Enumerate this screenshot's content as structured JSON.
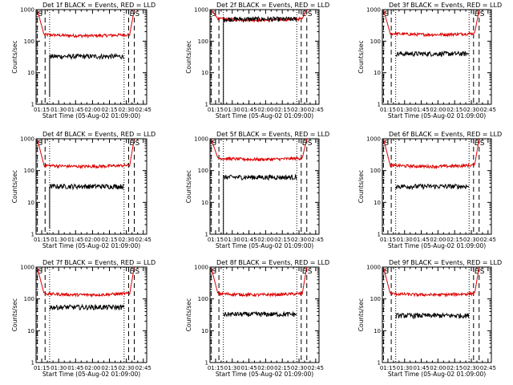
{
  "colors": {
    "events": "#000000",
    "lld": "#dd0000",
    "background": "#ffffff",
    "axes": "#000000"
  },
  "chart_data": [
    {
      "type": "line",
      "title": "Det 1f BLACK = Events, RED = LLD",
      "xlabel": "Start Time (05-Aug-02 01:09:00)",
      "ylabel": "Counts/sec",
      "yscale": "log",
      "ylim": [
        1,
        1000
      ],
      "x_ticks": [
        "01:15",
        "01:30",
        "01:45",
        "02:00",
        "02:15",
        "02:30",
        "02:45"
      ],
      "y_ticks": [
        "1",
        "10",
        "100",
        "1000"
      ],
      "markers": [
        {
          "text": "S",
          "x": "01:11"
        },
        {
          "text": "E",
          "x": "02:32"
        },
        {
          "text": "S",
          "x": "02:37"
        }
      ],
      "dashed_lines": [
        "01:11",
        "01:18",
        "02:32",
        "02:37"
      ],
      "dotted_lines": [
        "01:22",
        "02:28"
      ],
      "series": [
        {
          "name": "LLD",
          "values": {
            "t0": "01:11",
            "t1": "02:37",
            "level": 165,
            "edge": 1000
          }
        },
        {
          "name": "Events",
          "values": {
            "t0": "01:22",
            "t1": "02:28",
            "level": 33,
            "drop": 1.8
          }
        }
      ]
    },
    {
      "type": "line",
      "title": "Det 2f BLACK = Events, RED = LLD",
      "xlabel": "Start Time (05-Aug-02 01:09:00)",
      "ylabel": "Counts/sec",
      "yscale": "log",
      "ylim": [
        1,
        1000
      ],
      "x_ticks": [
        "01:15",
        "01:30",
        "01:45",
        "02:00",
        "02:15",
        "02:30",
        "02:45"
      ],
      "y_ticks": [
        "1",
        "10",
        "100",
        "1000"
      ],
      "markers": [
        {
          "text": "S",
          "x": "01:11"
        },
        {
          "text": "E",
          "x": "02:32"
        },
        {
          "text": "S",
          "x": "02:37"
        }
      ],
      "dashed_lines": [
        "01:11",
        "01:18",
        "02:32",
        "02:37"
      ],
      "dotted_lines": [
        "01:22",
        "02:28"
      ],
      "series": [
        {
          "name": "LLD",
          "values": {
            "t0": "01:11",
            "t1": "02:37",
            "level": 520,
            "edge": 1000
          }
        },
        {
          "name": "Events",
          "values": {
            "t0": "01:22",
            "t1": "02:28",
            "level": 500,
            "drop": 1
          }
        }
      ]
    },
    {
      "type": "line",
      "title": "Det 3f BLACK = Events, RED = LLD",
      "xlabel": "Start Time (05-Aug-02 01:09:00)",
      "ylabel": "Counts/sec",
      "yscale": "log",
      "ylim": [
        1,
        1000
      ],
      "x_ticks": [
        "01:15",
        "01:30",
        "01:45",
        "02:00",
        "02:15",
        "02:30",
        "02:45"
      ],
      "y_ticks": [
        "1",
        "10",
        "100",
        "1000"
      ],
      "markers": [
        {
          "text": "S",
          "x": "01:11"
        },
        {
          "text": "E",
          "x": "02:32"
        },
        {
          "text": "S",
          "x": "02:37"
        }
      ],
      "dashed_lines": [
        "01:11",
        "01:18",
        "02:32",
        "02:37"
      ],
      "dotted_lines": [
        "01:22",
        "02:28"
      ],
      "series": [
        {
          "name": "LLD",
          "values": {
            "t0": "01:11",
            "t1": "02:37",
            "level": 180,
            "edge": 1000
          }
        },
        {
          "name": "Events",
          "values": {
            "t0": "01:22",
            "t1": "02:28",
            "level": 40,
            "drop": null
          }
        }
      ]
    },
    {
      "type": "line",
      "title": "Det 4f BLACK = Events, RED = LLD",
      "xlabel": "Start Time (05-Aug-02 01:09:00)",
      "ylabel": "Counts/sec",
      "yscale": "log",
      "ylim": [
        1,
        1000
      ],
      "x_ticks": [
        "01:15",
        "01:30",
        "01:45",
        "02:00",
        "02:15",
        "02:30",
        "02:45"
      ],
      "y_ticks": [
        "1",
        "10",
        "100",
        "1000"
      ],
      "markers": [
        {
          "text": "S",
          "x": "01:11"
        },
        {
          "text": "E",
          "x": "02:32"
        },
        {
          "text": "S",
          "x": "02:37"
        }
      ],
      "dashed_lines": [
        "01:11",
        "01:18",
        "02:32",
        "02:37"
      ],
      "dotted_lines": [
        "01:22",
        "02:28"
      ],
      "series": [
        {
          "name": "LLD",
          "values": {
            "t0": "01:11",
            "t1": "02:37",
            "level": 150,
            "edge": 1000
          }
        },
        {
          "name": "Events",
          "values": {
            "t0": "01:22",
            "t1": "02:28",
            "level": 32,
            "drop": 1.5
          }
        }
      ]
    },
    {
      "type": "line",
      "title": "Det 5f BLACK = Events, RED = LLD",
      "xlabel": "Start Time (05-Aug-02 01:09:00)",
      "ylabel": "Counts/sec",
      "yscale": "log",
      "ylim": [
        1,
        1000
      ],
      "x_ticks": [
        "01:15",
        "01:30",
        "01:45",
        "02:00",
        "02:15",
        "02:30",
        "02:45"
      ],
      "y_ticks": [
        "1",
        "10",
        "100",
        "1000"
      ],
      "markers": [
        {
          "text": "S",
          "x": "01:11"
        },
        {
          "text": "E",
          "x": "02:32"
        },
        {
          "text": "S",
          "x": "02:37"
        }
      ],
      "dashed_lines": [
        "01:11",
        "01:18",
        "02:32",
        "02:37"
      ],
      "dotted_lines": [
        "01:22",
        "02:28"
      ],
      "series": [
        {
          "name": "LLD",
          "values": {
            "t0": "01:11",
            "t1": "02:37",
            "level": 250,
            "edge": 1000
          }
        },
        {
          "name": "Events",
          "values": {
            "t0": "01:22",
            "t1": "02:28",
            "level": 62,
            "drop": 1
          }
        }
      ]
    },
    {
      "type": "line",
      "title": "Det 6f BLACK = Events, RED = LLD",
      "xlabel": "Start Time (05-Aug-02 01:09:00)",
      "ylabel": "Counts/sec",
      "yscale": "log",
      "ylim": [
        1,
        1000
      ],
      "x_ticks": [
        "01:15",
        "01:30",
        "01:45",
        "02:00",
        "02:15",
        "02:30",
        "02:45"
      ],
      "y_ticks": [
        "1",
        "10",
        "100",
        "1000"
      ],
      "markers": [
        {
          "text": "S",
          "x": "01:11"
        },
        {
          "text": "E",
          "x": "02:32"
        },
        {
          "text": "S",
          "x": "02:37"
        }
      ],
      "dashed_lines": [
        "01:11",
        "01:18",
        "02:32",
        "02:37"
      ],
      "dotted_lines": [
        "01:22",
        "02:28"
      ],
      "series": [
        {
          "name": "LLD",
          "values": {
            "t0": "01:11",
            "t1": "02:37",
            "level": 150,
            "edge": 1000
          }
        },
        {
          "name": "Events",
          "values": {
            "t0": "01:22",
            "t1": "02:28",
            "level": 32,
            "drop": null
          }
        }
      ]
    },
    {
      "type": "line",
      "title": "Det 7f BLACK = Events, RED = LLD",
      "xlabel": "Start Time (05-Aug-02 01:09:00)",
      "ylabel": "Counts/sec",
      "yscale": "log",
      "ylim": [
        1,
        1000
      ],
      "x_ticks": [
        "01:15",
        "01:30",
        "01:45",
        "02:00",
        "02:15",
        "02:30",
        "02:45"
      ],
      "y_ticks": [
        "1",
        "10",
        "100",
        "1000"
      ],
      "markers": [
        {
          "text": "S",
          "x": "01:11"
        },
        {
          "text": "E",
          "x": "02:32"
        },
        {
          "text": "S",
          "x": "02:37"
        }
      ],
      "dashed_lines": [
        "01:11",
        "01:18",
        "02:32",
        "02:37"
      ],
      "dotted_lines": [
        "01:22",
        "02:28"
      ],
      "series": [
        {
          "name": "LLD",
          "values": {
            "t0": "01:11",
            "t1": "02:37",
            "level": 150,
            "edge": 1000
          }
        },
        {
          "name": "Events",
          "values": {
            "t0": "01:22",
            "t1": "02:28",
            "level": 55,
            "drop": null
          }
        }
      ]
    },
    {
      "type": "line",
      "title": "Det 8f BLACK = Events, RED = LLD",
      "xlabel": "Start Time (05-Aug-02 01:09:00)",
      "ylabel": "Counts/sec",
      "yscale": "log",
      "ylim": [
        1,
        1000
      ],
      "x_ticks": [
        "01:15",
        "01:30",
        "01:45",
        "02:00",
        "02:15",
        "02:30",
        "02:45"
      ],
      "y_ticks": [
        "1",
        "10",
        "100",
        "1000"
      ],
      "markers": [
        {
          "text": "S",
          "x": "01:11"
        },
        {
          "text": "E",
          "x": "02:32"
        },
        {
          "text": "S",
          "x": "02:37"
        }
      ],
      "dashed_lines": [
        "01:11",
        "01:18",
        "02:32",
        "02:37"
      ],
      "dotted_lines": [
        "01:22",
        "02:28"
      ],
      "series": [
        {
          "name": "LLD",
          "values": {
            "t0": "01:11",
            "t1": "02:37",
            "level": 150,
            "edge": 1000
          }
        },
        {
          "name": "Events",
          "values": {
            "t0": "01:22",
            "t1": "02:28",
            "level": 33,
            "drop": null
          }
        }
      ]
    },
    {
      "type": "line",
      "title": "Det 9f BLACK = Events, RED = LLD",
      "xlabel": "Start Time (05-Aug-02 01:09:00)",
      "ylabel": "Counts/sec",
      "yscale": "log",
      "ylim": [
        1,
        1000
      ],
      "x_ticks": [
        "01:15",
        "01:30",
        "01:45",
        "02:00",
        "02:15",
        "02:30",
        "02:45"
      ],
      "y_ticks": [
        "1",
        "10",
        "100",
        "1000"
      ],
      "markers": [
        {
          "text": "S",
          "x": "01:11"
        },
        {
          "text": "E",
          "x": "02:32"
        },
        {
          "text": "S",
          "x": "02:37"
        }
      ],
      "dashed_lines": [
        "01:11",
        "01:18",
        "02:32",
        "02:37"
      ],
      "dotted_lines": [
        "01:22",
        "02:28"
      ],
      "series": [
        {
          "name": "LLD",
          "values": {
            "t0": "01:11",
            "t1": "02:37",
            "level": 150,
            "edge": 1000
          }
        },
        {
          "name": "Events",
          "values": {
            "t0": "01:22",
            "t1": "02:28",
            "level": 30,
            "drop": null
          }
        }
      ]
    }
  ]
}
